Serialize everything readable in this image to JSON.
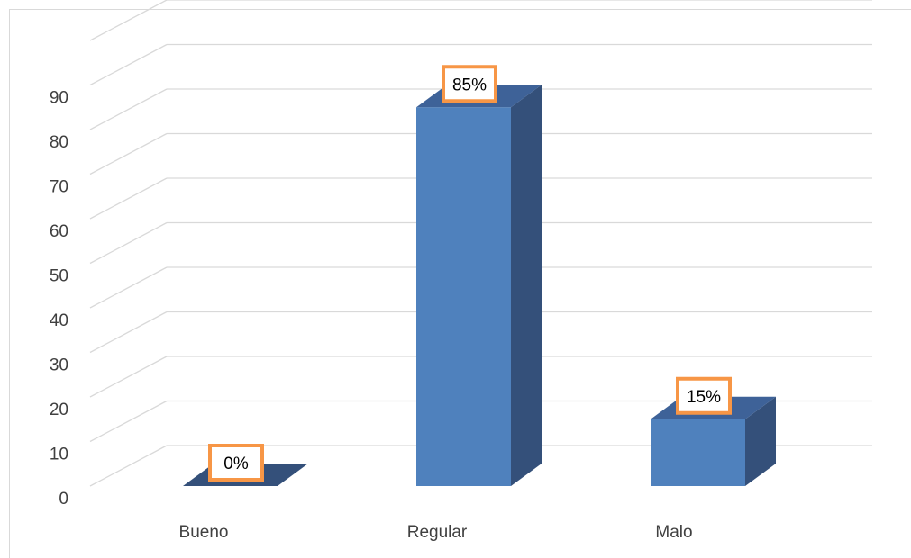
{
  "chart_data": {
    "type": "bar",
    "three_d": true,
    "categories": [
      "Bueno",
      "Regular",
      "Malo"
    ],
    "values": [
      0,
      85,
      15
    ],
    "data_labels": [
      "0%",
      "85%",
      "15%"
    ],
    "ylim": [
      0,
      90
    ],
    "y_ticks": [
      "0",
      "10",
      "20",
      "30",
      "40",
      "50",
      "60",
      "70",
      "80",
      "90"
    ],
    "grid": true,
    "legend": "none",
    "title": "",
    "xlabel": "",
    "ylabel": "",
    "colors": {
      "bar_front": "#4f81bd",
      "bar_side": "#34507a",
      "bar_top": "#3e6298",
      "label_border": "#f79646",
      "gridline": "#d9d9d9",
      "axis_text": "#404040"
    }
  }
}
